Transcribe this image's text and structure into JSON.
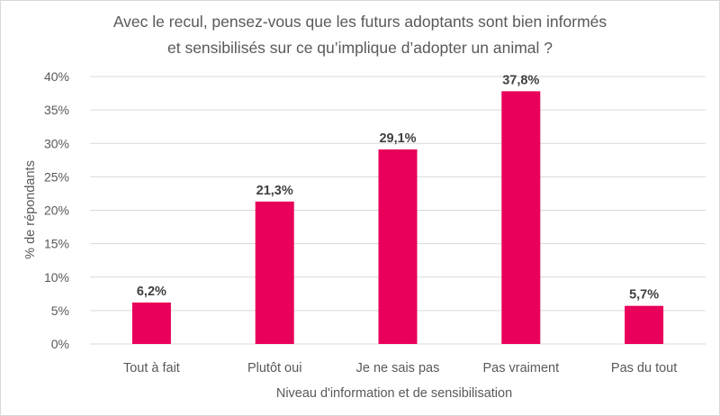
{
  "chart_data": {
    "type": "bar",
    "title": [
      "Avec le recul, pensez-vous que les futurs adoptants sont bien informés",
      "et sensibilisés sur ce qu’implique d’adopter un animal ?"
    ],
    "xlabel": "Niveau d'information et de sensibilisation",
    "ylabel": "% de répondants",
    "categories": [
      "Tout à fait",
      "Plutôt oui",
      "Je ne sais pas",
      "Pas vraiment",
      "Pas du tout"
    ],
    "values": [
      6.2,
      21.3,
      29.1,
      37.8,
      5.7
    ],
    "data_labels": [
      "6,2%",
      "21,3%",
      "29,1%",
      "37,8%",
      "5,7%"
    ],
    "ylim": [
      0,
      40
    ],
    "yticks": [
      0,
      5,
      10,
      15,
      20,
      25,
      30,
      35,
      40
    ],
    "ytick_labels": [
      "0%",
      "5%",
      "10%",
      "15%",
      "20%",
      "25%",
      "30%",
      "35%",
      "40%"
    ],
    "grid": true,
    "legend": "none",
    "bar_color": "#e8005a"
  }
}
